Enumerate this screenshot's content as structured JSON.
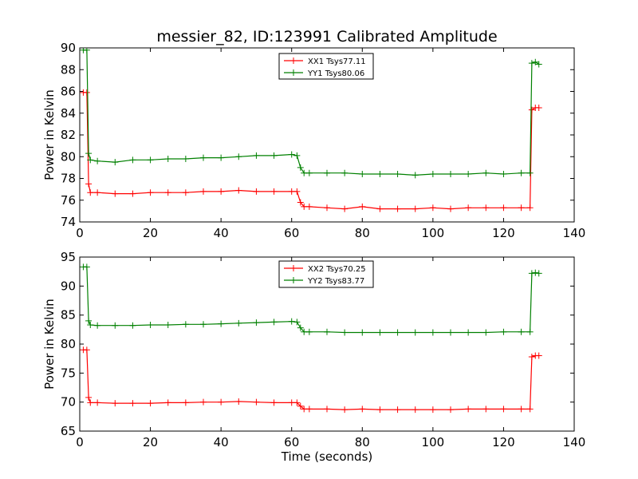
{
  "chart_data": [
    {
      "type": "line",
      "title": "messier_82, ID:123991 Calibrated Amplitude",
      "xlabel": "",
      "ylabel": "Power in Kelvin",
      "xlim": [
        0,
        140
      ],
      "ylim": [
        74,
        90
      ],
      "xticks": [
        "0",
        "20",
        "40",
        "60",
        "80",
        "100",
        "120",
        "140"
      ],
      "yticks": [
        "74",
        "76",
        "78",
        "80",
        "82",
        "84",
        "86",
        "88",
        "90"
      ],
      "legend_position": "top-center",
      "grid": false,
      "series": [
        {
          "name": "XX1 Tsys77.11",
          "color": "#ff0000",
          "x": [
            1,
            2,
            2.5,
            3,
            5,
            10,
            15,
            20,
            25,
            30,
            35,
            40,
            45,
            50,
            55,
            60,
            61.5,
            62.5,
            63.5,
            65,
            70,
            75,
            80,
            85,
            90,
            95,
            100,
            105,
            110,
            115,
            120,
            125,
            127.5,
            128,
            129,
            130
          ],
          "y": [
            85.9,
            85.9,
            77.5,
            76.7,
            76.7,
            76.6,
            76.6,
            76.7,
            76.7,
            76.7,
            76.8,
            76.8,
            76.9,
            76.8,
            76.8,
            76.8,
            76.8,
            75.8,
            75.4,
            75.4,
            75.3,
            75.2,
            75.4,
            75.2,
            75.2,
            75.2,
            75.3,
            75.2,
            75.3,
            75.3,
            75.3,
            75.3,
            75.3,
            84.3,
            84.5,
            84.5
          ]
        },
        {
          "name": "YY1 Tsys80.06",
          "color": "#008000",
          "x": [
            1,
            2,
            2.5,
            3,
            5,
            10,
            15,
            20,
            25,
            30,
            35,
            40,
            45,
            50,
            55,
            60,
            61.5,
            62.5,
            63.5,
            65,
            70,
            75,
            80,
            85,
            90,
            95,
            100,
            105,
            110,
            115,
            120,
            125,
            127.5,
            128,
            129,
            130
          ],
          "y": [
            89.8,
            89.8,
            80.3,
            79.7,
            79.6,
            79.5,
            79.7,
            79.7,
            79.8,
            79.8,
            79.9,
            79.9,
            80.0,
            80.1,
            80.1,
            80.2,
            80.1,
            79.0,
            78.5,
            78.5,
            78.5,
            78.5,
            78.4,
            78.4,
            78.4,
            78.3,
            78.4,
            78.4,
            78.4,
            78.5,
            78.4,
            78.5,
            78.5,
            88.6,
            88.7,
            88.5
          ]
        }
      ]
    },
    {
      "type": "line",
      "title": "",
      "xlabel": "Time (seconds)",
      "ylabel": "Power in Kelvin",
      "xlim": [
        0,
        140
      ],
      "ylim": [
        65,
        95
      ],
      "xticks": [
        "0",
        "20",
        "40",
        "60",
        "80",
        "100",
        "120",
        "140"
      ],
      "yticks": [
        "65",
        "70",
        "75",
        "80",
        "85",
        "90",
        "95"
      ],
      "legend_position": "top-center",
      "grid": false,
      "series": [
        {
          "name": "XX2 Tsys70.25",
          "color": "#ff0000",
          "x": [
            1,
            2,
            2.5,
            3,
            5,
            10,
            15,
            20,
            25,
            30,
            35,
            40,
            45,
            50,
            55,
            60,
            61.5,
            62.5,
            63.5,
            65,
            70,
            75,
            80,
            85,
            90,
            95,
            100,
            105,
            110,
            115,
            120,
            125,
            127.5,
            128,
            129,
            130
          ],
          "y": [
            79.0,
            79.0,
            70.8,
            69.9,
            69.9,
            69.8,
            69.8,
            69.8,
            69.9,
            69.9,
            70.0,
            70.0,
            70.1,
            70.0,
            69.9,
            69.9,
            69.9,
            69.3,
            68.8,
            68.8,
            68.8,
            68.7,
            68.8,
            68.7,
            68.7,
            68.7,
            68.7,
            68.7,
            68.8,
            68.8,
            68.8,
            68.8,
            68.8,
            77.8,
            78.0,
            78.0
          ]
        },
        {
          "name": "YY2 Tsys83.77",
          "color": "#008000",
          "x": [
            1,
            2,
            2.5,
            3,
            5,
            10,
            15,
            20,
            25,
            30,
            35,
            40,
            45,
            50,
            55,
            60,
            61.5,
            62.5,
            63.5,
            65,
            70,
            75,
            80,
            85,
            90,
            95,
            100,
            105,
            110,
            115,
            120,
            125,
            127.5,
            128,
            129,
            130
          ],
          "y": [
            93.3,
            93.3,
            84.0,
            83.3,
            83.2,
            83.2,
            83.2,
            83.3,
            83.3,
            83.4,
            83.4,
            83.5,
            83.6,
            83.7,
            83.8,
            83.9,
            83.8,
            82.8,
            82.1,
            82.1,
            82.1,
            82.0,
            82.0,
            82.0,
            82.0,
            82.0,
            82.0,
            82.0,
            82.0,
            82.0,
            82.1,
            82.1,
            82.1,
            92.2,
            92.3,
            92.2
          ]
        }
      ]
    }
  ]
}
